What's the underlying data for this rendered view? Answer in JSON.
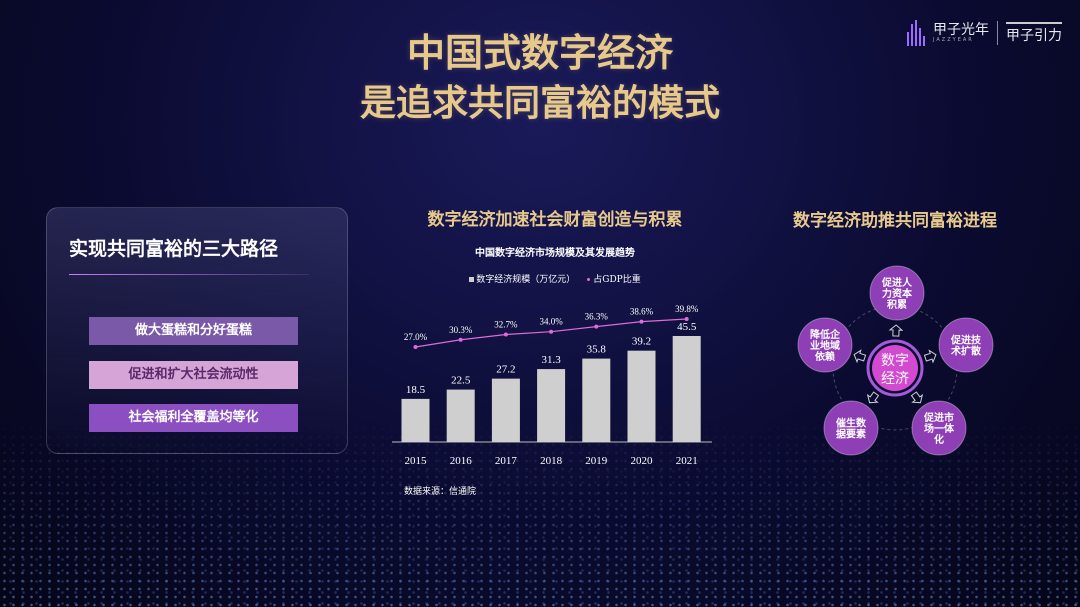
{
  "header": {
    "title_line1": "中国式数字经济",
    "title_line2": "是追求共同富裕的模式"
  },
  "logo": {
    "brand": "甲子光年",
    "brand_sub": "JAZZYEAR",
    "partner": "甲子引力"
  },
  "left_panel": {
    "title": "实现共同富裕的三大路径",
    "paths": [
      "做大蛋糕和分好蛋糕",
      "促进和扩大社会流动性",
      "社会福利全覆盖均等化"
    ]
  },
  "middle": {
    "section_title": "数字经济加速社会财富创造与积累",
    "legend_bar": "数字经济规模（万亿元）",
    "legend_line": "占GDP比重",
    "source": "数据来源：信通院"
  },
  "chart_data": {
    "type": "bar",
    "title": "中国数字经济市场规模及其发展趋势",
    "categories": [
      "2015",
      "2016",
      "2017",
      "2018",
      "2019",
      "2020",
      "2021"
    ],
    "series": [
      {
        "name": "数字经济规模（万亿元）",
        "type": "bar",
        "values": [
          18.5,
          22.5,
          27.2,
          31.3,
          35.8,
          39.2,
          45.5
        ],
        "color": "#cfcfcf"
      },
      {
        "name": "占GDP比重",
        "type": "line",
        "values": [
          27.0,
          30.3,
          32.7,
          34.0,
          36.3,
          38.6,
          39.8
        ],
        "labels": [
          "27.0%",
          "30.3%",
          "32.7%",
          "34.0%",
          "36.3%",
          "38.6%",
          "39.8%"
        ],
        "color": "#e06bd8"
      }
    ],
    "legend_position": "top",
    "grid": false
  },
  "right": {
    "section_title": "数字经济助推共同富裕进程",
    "center": "数字经济",
    "nodes": [
      "促进人力资本积累",
      "促进技术扩散",
      "促进市场一体化",
      "催生数据要素",
      "降低企业地域依赖"
    ],
    "colors": {
      "node": "#8e3fb5",
      "center": "#d24ad0",
      "ring": "#a35bd8"
    }
  },
  "colors": {
    "gold": "#e8c98c",
    "background": "#0b0b32"
  }
}
